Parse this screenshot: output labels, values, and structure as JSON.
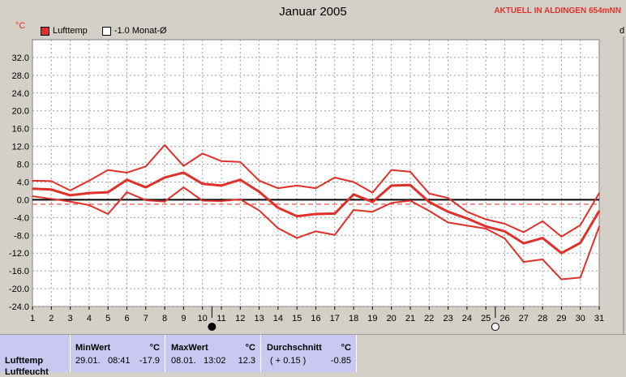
{
  "header": {
    "aktuell": "AKTUELL IN ALDINGEN 654mNN"
  },
  "units": {
    "left": "°C",
    "right": "d"
  },
  "legend": [
    {
      "label": "Lufttemp",
      "color": "#e0302a"
    },
    {
      "label": "-1.0 Monat-Ø",
      "color": "#ffffff"
    }
  ],
  "chart_data": {
    "type": "line",
    "title": "Januar 2005",
    "x": [
      1,
      2,
      3,
      4,
      5,
      6,
      7,
      8,
      9,
      10,
      11,
      12,
      13,
      14,
      15,
      16,
      17,
      18,
      19,
      20,
      21,
      22,
      23,
      24,
      25,
      26,
      27,
      28,
      29,
      30,
      31
    ],
    "ylim": [
      -24,
      36
    ],
    "yticks": [
      "32.0",
      "28.0",
      "24.0",
      "20.0",
      "16.0",
      "12.0",
      "8.0",
      "4.0",
      "0.0",
      "-4.0",
      "-8.0",
      "-12.0",
      "-16.0",
      "-20.0",
      "-24.0"
    ],
    "ytick_values": [
      32,
      28,
      24,
      20,
      16,
      12,
      8,
      4,
      0,
      -4,
      -8,
      -12,
      -16,
      -20,
      -24
    ],
    "series": [
      {
        "values": [
          4.3,
          4.2,
          2.1,
          4.3,
          6.7,
          6.1,
          7.5,
          12.3,
          7.6,
          10.4,
          8.7,
          8.5,
          4.3,
          2.6,
          3.2,
          2.6,
          5.0,
          4.0,
          1.6,
          6.7,
          6.3,
          1.4,
          0.4,
          -2.7,
          -4.4,
          -5.4,
          -7.3,
          -4.8,
          -8.3,
          -5.7,
          1.5
        ],
        "width": 2
      },
      {
        "values": [
          2.5,
          2.3,
          1.0,
          1.5,
          1.7,
          4.5,
          2.8,
          5.0,
          6.1,
          3.6,
          3.2,
          4.5,
          1.8,
          -1.8,
          -3.7,
          -3.2,
          -3.1,
          1.2,
          -0.5,
          3.2,
          3.3,
          -0.5,
          -2.7,
          -4.2,
          -6.0,
          -7.1,
          -9.8,
          -8.6,
          -12.0,
          -9.7,
          -2.5
        ],
        "width": 3
      },
      {
        "values": [
          0.8,
          0.2,
          -0.4,
          -1.2,
          -3.2,
          1.7,
          -0.1,
          -0.4,
          2.8,
          -0.2,
          -0.3,
          0.1,
          -2.4,
          -6.4,
          -8.6,
          -7.1,
          -7.9,
          -2.3,
          -2.7,
          -0.7,
          -0.2,
          -2.5,
          -5.1,
          -5.8,
          -6.5,
          -8.7,
          -14.0,
          -13.4,
          -17.9,
          -17.5,
          -6.0
        ],
        "width": 2
      }
    ],
    "reference": {
      "value": -1.0
    },
    "xlabel": "",
    "ylabel": "°C",
    "markers": {
      "full_moon_day": 10.5,
      "new_moon_day": 25.5
    }
  },
  "table": {
    "row_label": "Lufttemp",
    "next_row_label": "Luftfeucht",
    "min": {
      "header": "MinWert",
      "unit": "°C",
      "date": "29.01.",
      "time": "08:41",
      "value": "-17.9"
    },
    "max": {
      "header": "MaxWert",
      "unit": "°C",
      "date": "08.01.",
      "time": "13:02",
      "value": "12.3"
    },
    "avg": {
      "header": "Durchschnitt",
      "unit": "°C",
      "delta": "( + 0.15 )",
      "value": "-0.85"
    }
  }
}
